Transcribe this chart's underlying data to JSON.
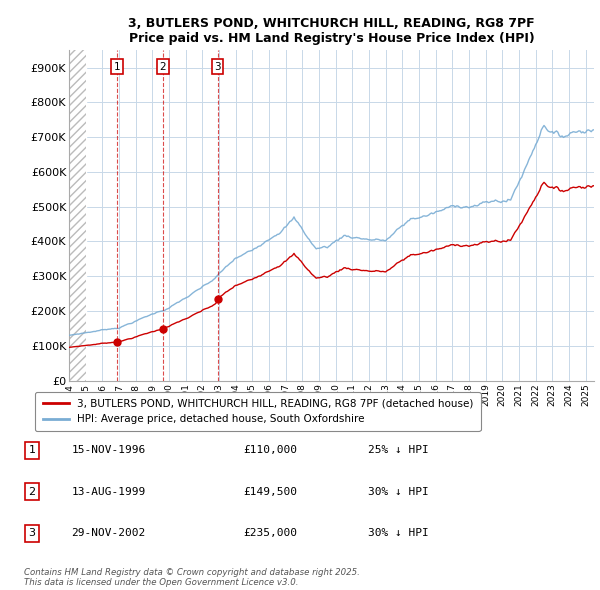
{
  "title_line1": "3, BUTLERS POND, WHITCHURCH HILL, READING, RG8 7PF",
  "title_line2": "Price paid vs. HM Land Registry's House Price Index (HPI)",
  "ylim": [
    0,
    950000
  ],
  "yticks": [
    0,
    100000,
    200000,
    300000,
    400000,
    500000,
    600000,
    700000,
    800000,
    900000
  ],
  "ytick_labels": [
    "£0",
    "£100K",
    "£200K",
    "£300K",
    "£400K",
    "£500K",
    "£600K",
    "£700K",
    "£800K",
    "£900K"
  ],
  "hpi_color": "#7aadd4",
  "price_color": "#cc0000",
  "vline_color": "#cc0000",
  "grid_color": "#c8d8e8",
  "background_color": "#ffffff",
  "transactions": [
    {
      "date_num": 1996.88,
      "price": 110000,
      "label": "1"
    },
    {
      "date_num": 1999.62,
      "price": 149500,
      "label": "2"
    },
    {
      "date_num": 2002.91,
      "price": 235000,
      "label": "3"
    }
  ],
  "legend_entries": [
    "3, BUTLERS POND, WHITCHURCH HILL, READING, RG8 7PF (detached house)",
    "HPI: Average price, detached house, South Oxfordshire"
  ],
  "table_rows": [
    [
      "1",
      "15-NOV-1996",
      "£110,000",
      "25% ↓ HPI"
    ],
    [
      "2",
      "13-AUG-1999",
      "£149,500",
      "30% ↓ HPI"
    ],
    [
      "3",
      "29-NOV-2002",
      "£235,000",
      "30% ↓ HPI"
    ]
  ],
  "footnote": "Contains HM Land Registry data © Crown copyright and database right 2025.\nThis data is licensed under the Open Government Licence v3.0.",
  "xmin": 1994.0,
  "xmax": 2025.5
}
